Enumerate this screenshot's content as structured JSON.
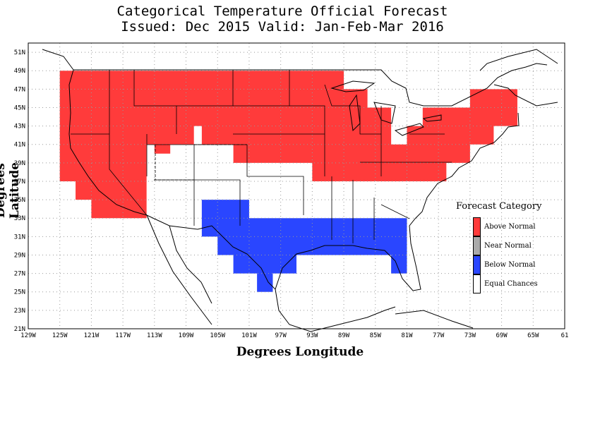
{
  "title": {
    "line1": "Categorical Temperature Official Forecast",
    "line2": "Issued: Dec 2015 Valid: Jan-Feb-Mar 2016"
  },
  "axes": {
    "xlabel": "Degrees Longitude",
    "ylabel": "Degrees Latitude",
    "x_ticks": [
      "129W",
      "125W",
      "121W",
      "117W",
      "113W",
      "109W",
      "105W",
      "101W",
      "97W",
      "93W",
      "89W",
      "85W",
      "81W",
      "77W",
      "73W",
      "69W",
      "65W",
      "61"
    ],
    "y_ticks": [
      "51N",
      "49N",
      "47N",
      "45N",
      "43N",
      "41N",
      "39N",
      "37N",
      "35N",
      "33N",
      "31N",
      "29N",
      "27N",
      "25N",
      "23N",
      "21N"
    ],
    "lon_range": [
      -129,
      -61
    ],
    "lat_range": [
      21,
      52
    ],
    "grid": true
  },
  "legend": {
    "title": "Forecast Category",
    "items": [
      {
        "label": "Above Normal",
        "color": "#ff3b3b"
      },
      {
        "label": "Near Normal",
        "color": "#aaaaaa"
      },
      {
        "label": "Below Normal",
        "color": "#2a46ff"
      },
      {
        "label": "Equal Chances",
        "color": "#ffffff"
      }
    ]
  },
  "regions": {
    "above_normal": [
      [
        [
          -125,
          49
        ],
        [
          -89,
          49
        ],
        [
          -89,
          47
        ],
        [
          -86,
          47
        ],
        [
          -86,
          45
        ],
        [
          -83,
          45
        ],
        [
          -83,
          41
        ],
        [
          -81,
          41
        ],
        [
          -81,
          43
        ],
        [
          -79,
          43
        ],
        [
          -79,
          45
        ],
        [
          -77,
          45
        ],
        [
          -77,
          45
        ],
        [
          -73,
          45
        ],
        [
          -73,
          47
        ],
        [
          -71,
          47
        ],
        [
          -71,
          47
        ],
        [
          -69,
          47
        ],
        [
          -69,
          47
        ],
        [
          -67,
          47
        ],
        [
          -67,
          43
        ],
        [
          -70,
          43
        ],
        [
          -70,
          41
        ],
        [
          -73,
          41
        ],
        [
          -73,
          39
        ],
        [
          -76,
          39
        ],
        [
          -76,
          37
        ],
        [
          -81,
          37
        ],
        [
          -83,
          37
        ],
        [
          -93,
          37
        ],
        [
          -93,
          39
        ],
        [
          -103,
          39
        ],
        [
          -103,
          41
        ],
        [
          -107,
          41
        ],
        [
          -107,
          43
        ],
        [
          -108,
          43
        ],
        [
          -108,
          41
        ],
        [
          -111,
          41
        ],
        [
          -111,
          40
        ],
        [
          -113,
          40
        ],
        [
          -113,
          41
        ],
        [
          -114,
          41
        ],
        [
          -114,
          33
        ],
        [
          -121,
          33
        ],
        [
          -121,
          35
        ],
        [
          -123,
          35
        ],
        [
          -123,
          37
        ],
        [
          -125,
          37
        ],
        [
          -125,
          39
        ],
        [
          -125,
          49
        ]
      ]
    ],
    "below_normal": [
      [
        [
          -107,
          35
        ],
        [
          -101,
          35
        ],
        [
          -101,
          33
        ],
        [
          -83,
          33
        ],
        [
          -81,
          33
        ],
        [
          -81,
          27
        ],
        [
          -83,
          27
        ],
        [
          -83,
          29
        ],
        [
          -95,
          29
        ],
        [
          -95,
          27
        ],
        [
          -98,
          27
        ],
        [
          -98,
          25
        ],
        [
          -100,
          25
        ],
        [
          -100,
          27
        ],
        [
          -103,
          27
        ],
        [
          -103,
          29
        ],
        [
          -105,
          29
        ],
        [
          -105,
          31
        ],
        [
          -107,
          31
        ],
        [
          -107,
          35
        ]
      ]
    ]
  }
}
